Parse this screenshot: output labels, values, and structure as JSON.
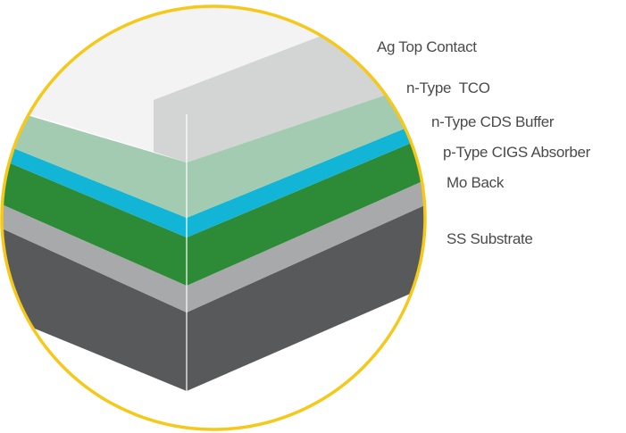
{
  "diagram": {
    "layers": [
      {
        "label": "Ag Top Contact",
        "color": "#f2f3f2",
        "side_color": "#d3d4d4"
      },
      {
        "label": "n-Type  TCO",
        "color": "#a3cbb1"
      },
      {
        "label": "n-Type CDS Buffer",
        "color": "#12b5d5"
      },
      {
        "label": "p-Type CIGS Absorber",
        "color": "#2d8a36"
      },
      {
        "label": "Mo Back",
        "color": "#a7a9ab"
      },
      {
        "label": "SS Substrate",
        "color": "#58595b"
      }
    ],
    "frame_color": "#f5c81a",
    "label_color": "#4a4a4a"
  }
}
